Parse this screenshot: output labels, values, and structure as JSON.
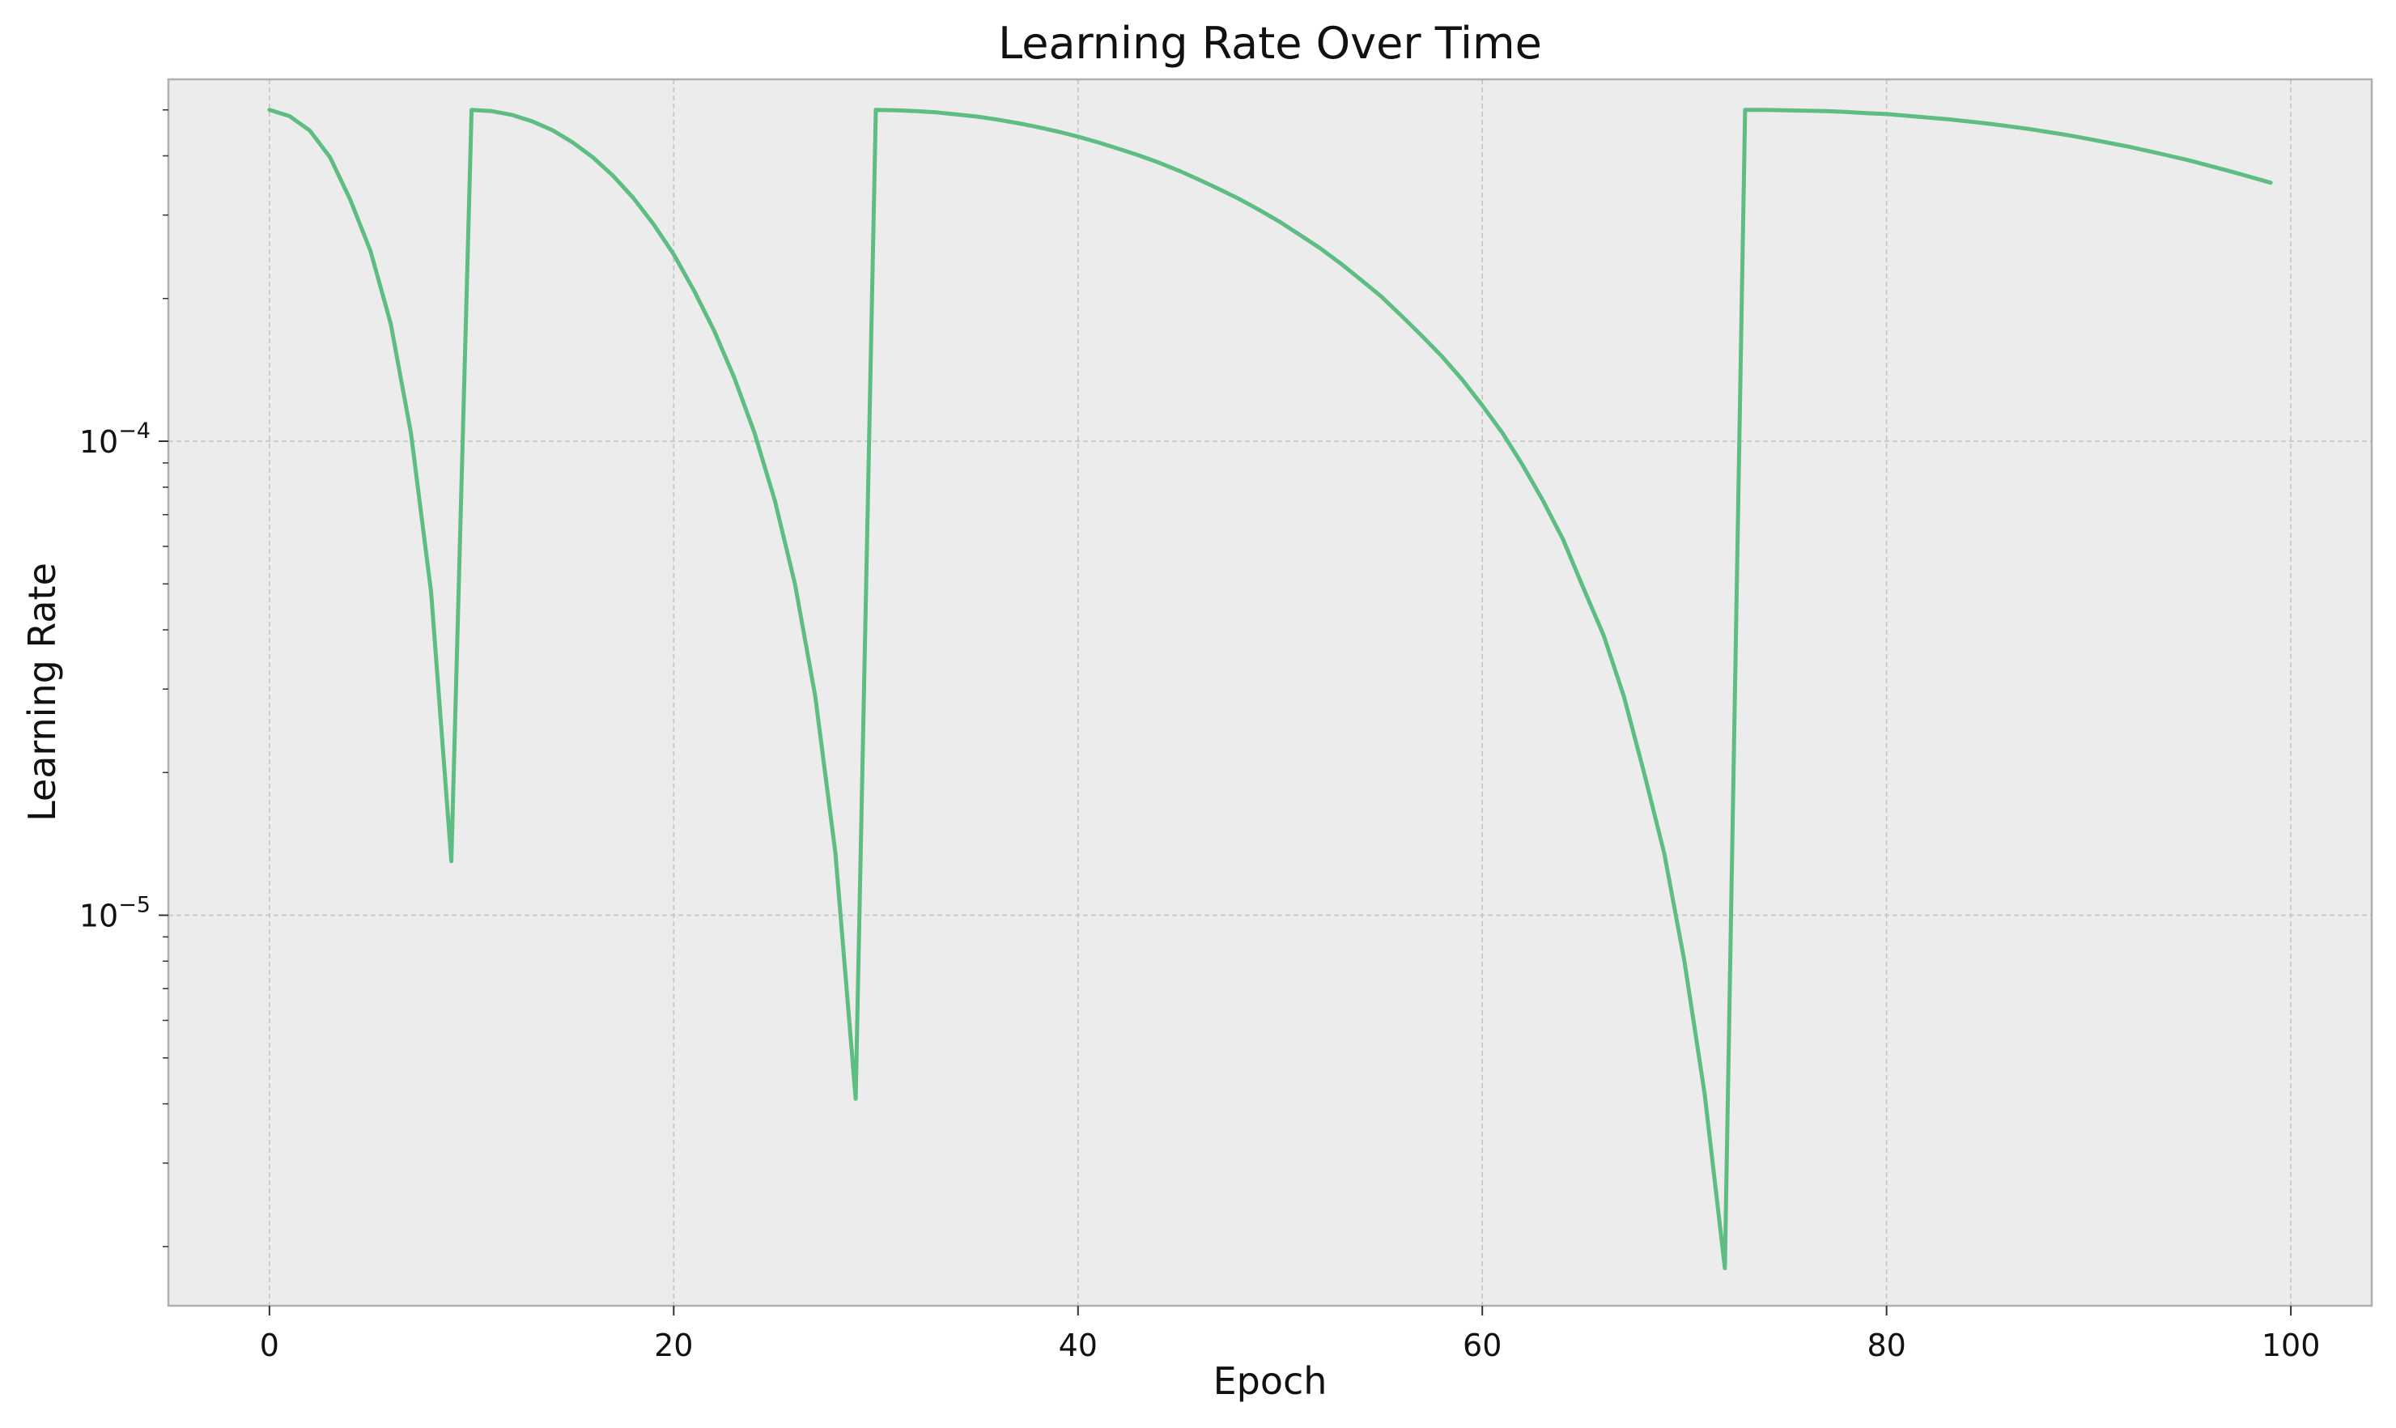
{
  "chart_data": {
    "type": "line",
    "title": "Learning Rate Over Time",
    "xlabel": "Epoch",
    "ylabel": "Learning Rate",
    "yscale": "log",
    "xlim": [
      -5,
      104
    ],
    "ylim": [
      1.5e-06,
      0.00058
    ],
    "xticks": [
      0,
      20,
      40,
      60,
      80,
      100
    ],
    "yticks": [
      {
        "value": 1e-05,
        "base": "10",
        "exp": "−5"
      },
      {
        "value": 0.0001,
        "base": "10",
        "exp": "−4"
      }
    ],
    "grid": true,
    "colors": {
      "line": "#5dbd82",
      "plot_background": "#ececec",
      "grid": "#c4c4c4",
      "frame": "#b0b0b0"
    },
    "series": [
      {
        "x": [
          0,
          1,
          2,
          3,
          4,
          5,
          6,
          7,
          8,
          9,
          10,
          11,
          12,
          13,
          14,
          15,
          16,
          17,
          18,
          19,
          20,
          21,
          22,
          23,
          24,
          25,
          26,
          27,
          28,
          29,
          30,
          31,
          32,
          33,
          34,
          35,
          36,
          37,
          38,
          39,
          40,
          41,
          42,
          43,
          44,
          45,
          46,
          47,
          48,
          49,
          50,
          51,
          52,
          53,
          54,
          55,
          56,
          57,
          58,
          59,
          60,
          61,
          62,
          63,
          64,
          65,
          66,
          67,
          68,
          69,
          70,
          71,
          72,
          73,
          74,
          75,
          76,
          77,
          78,
          79,
          80,
          81,
          82,
          83,
          84,
          85,
          86,
          87,
          88,
          89,
          90,
          91,
          92,
          93,
          94,
          95,
          96,
          97,
          98,
          99
        ],
        "y": [
          0.0005,
          0.000485,
          0.000452,
          0.000397,
          0.000323,
          0.000252,
          0.000177,
          0.000104,
          4.8e-05,
          1.3e-05,
          0.0005,
          0.000497,
          0.000488,
          0.000473,
          0.000453,
          0.000427,
          0.000397,
          0.000363,
          0.000326,
          0.000287,
          0.000248,
          0.000208,
          0.000171,
          0.000136,
          0.000104,
          7.5e-05,
          5e-05,
          2.9e-05,
          1.35e-05,
          4.1e-06,
          0.0005,
          0.000499,
          0.000497,
          0.000494,
          0.000489,
          0.000484,
          0.000477,
          0.000469,
          0.00046,
          0.00045,
          0.000439,
          0.000427,
          0.000414,
          0.000401,
          0.000387,
          0.000372,
          0.000356,
          0.00034,
          0.000324,
          0.000307,
          0.00029,
          0.000272,
          0.000255,
          0.000237,
          0.000219,
          0.000202,
          0.000184,
          0.000167,
          0.000151,
          0.000135,
          0.000119,
          0.000104,
          8.9e-05,
          7.5e-05,
          6.2e-05,
          4.9e-05,
          3.9e-05,
          2.9e-05,
          2e-05,
          1.35e-05,
          8e-06,
          4.2e-06,
          1.8e-06,
          0.0005,
          0.0005,
          0.000499,
          0.000498,
          0.000497,
          0.000495,
          0.000492,
          0.00049,
          0.000486,
          0.000482,
          0.000478,
          0.000473,
          0.000468,
          0.000462,
          0.000456,
          0.000449,
          0.000442,
          0.000434,
          0.000426,
          0.000418,
          0.000409,
          0.0004,
          0.000391,
          0.000381,
          0.000371,
          0.000361,
          0.000351
        ]
      }
    ]
  }
}
